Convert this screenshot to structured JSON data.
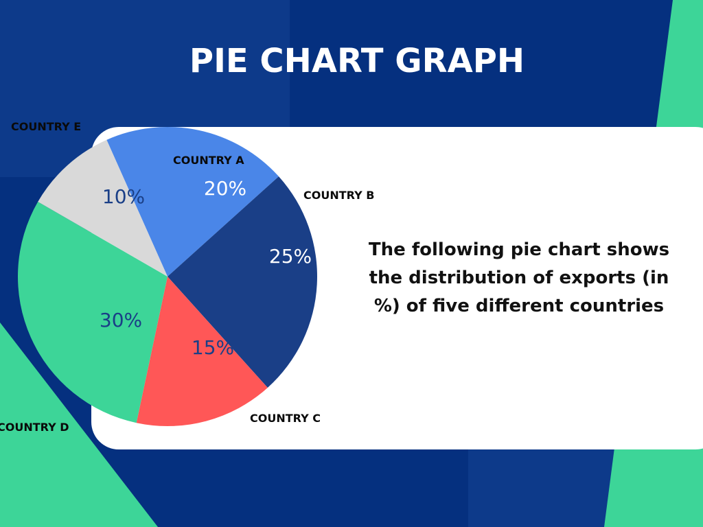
{
  "chart_data": {
    "type": "pie",
    "title": "PIE CHART GRAPH",
    "description": [
      "The following pie chart shows",
      "the distribution of exports (in",
      "%) of five different countries"
    ],
    "categories": [
      "COUNTRY A",
      "COUNTRY B",
      "COUNTRY C",
      "COUNTRY D",
      "COUNTRY E"
    ],
    "values": [
      20,
      25,
      15,
      30,
      10
    ],
    "value_labels": [
      "20%",
      "25%",
      "15%",
      "30%",
      "10%"
    ],
    "colors": [
      "#4a86e8",
      "#1a3f87",
      "#ff5757",
      "#3dd598",
      "#d9d9d9"
    ]
  }
}
